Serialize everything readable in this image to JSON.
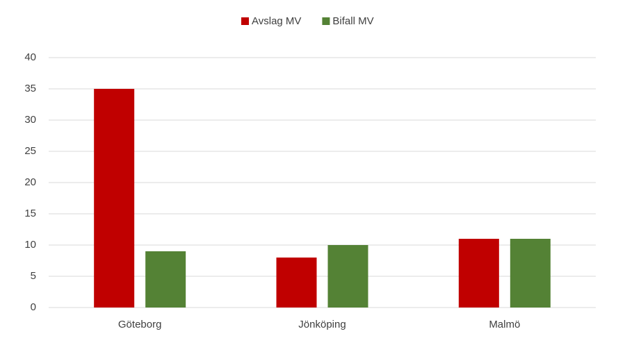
{
  "chart_data": {
    "type": "bar",
    "categories": [
      "Göteborg",
      "Jönköping",
      "Malmö"
    ],
    "series": [
      {
        "name": "Avslag MV",
        "color": "#c00000",
        "values": [
          35,
          8,
          11
        ]
      },
      {
        "name": "Bifall MV",
        "color": "#548235",
        "values": [
          9,
          10,
          11
        ]
      }
    ],
    "ylim": [
      0,
      40
    ],
    "yticks": [
      0,
      5,
      10,
      15,
      20,
      25,
      30,
      35,
      40
    ],
    "grid": true,
    "legend": "top"
  }
}
